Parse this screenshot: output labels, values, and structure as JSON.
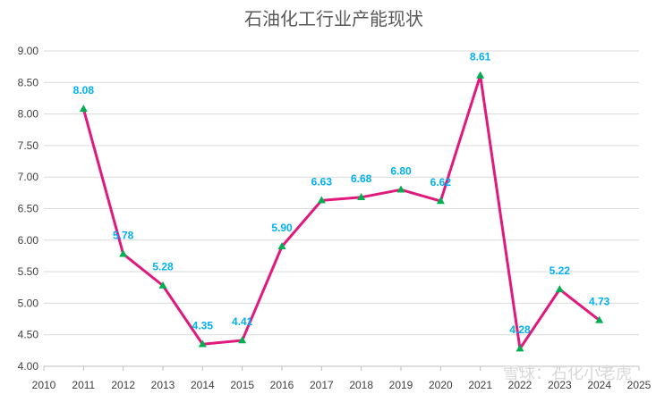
{
  "chart_data": {
    "type": "line",
    "title": "石油化工行业产能现状",
    "xlabel": "",
    "ylabel": "",
    "x_ticks": [
      "2010",
      "2011",
      "2012",
      "2013",
      "2014",
      "2015",
      "2016",
      "2017",
      "2018",
      "2019",
      "2020",
      "2021",
      "2022",
      "2023",
      "2024",
      "2025"
    ],
    "y_ticks": [
      "4.00",
      "4.50",
      "5.00",
      "5.50",
      "6.00",
      "6.50",
      "7.00",
      "7.50",
      "8.00",
      "8.50",
      "9.00"
    ],
    "xlim": [
      2010,
      2025
    ],
    "ylim": [
      4.0,
      9.0
    ],
    "grid": "horizontal",
    "legend": "none",
    "series": [
      {
        "x": [
          2011,
          2012,
          2013,
          2014,
          2015,
          2016,
          2017,
          2018,
          2019,
          2020,
          2021,
          2022,
          2023,
          2024
        ],
        "values": [
          8.08,
          5.78,
          5.28,
          4.35,
          4.41,
          5.9,
          6.63,
          6.68,
          6.8,
          6.62,
          8.61,
          4.28,
          5.22,
          4.73
        ],
        "labels": [
          "8.08",
          "5.78",
          "5.28",
          "4.35",
          "4.41",
          "5.90",
          "6.63",
          "6.68",
          "6.80",
          "6.62",
          "8.61",
          "4.28",
          "5.22",
          "4.73"
        ],
        "line_color": "#E0197D",
        "marker": "triangle",
        "marker_color": "#00B050",
        "label_color": "#00B0F0"
      }
    ]
  },
  "watermark": "雪球：石化小老虎"
}
